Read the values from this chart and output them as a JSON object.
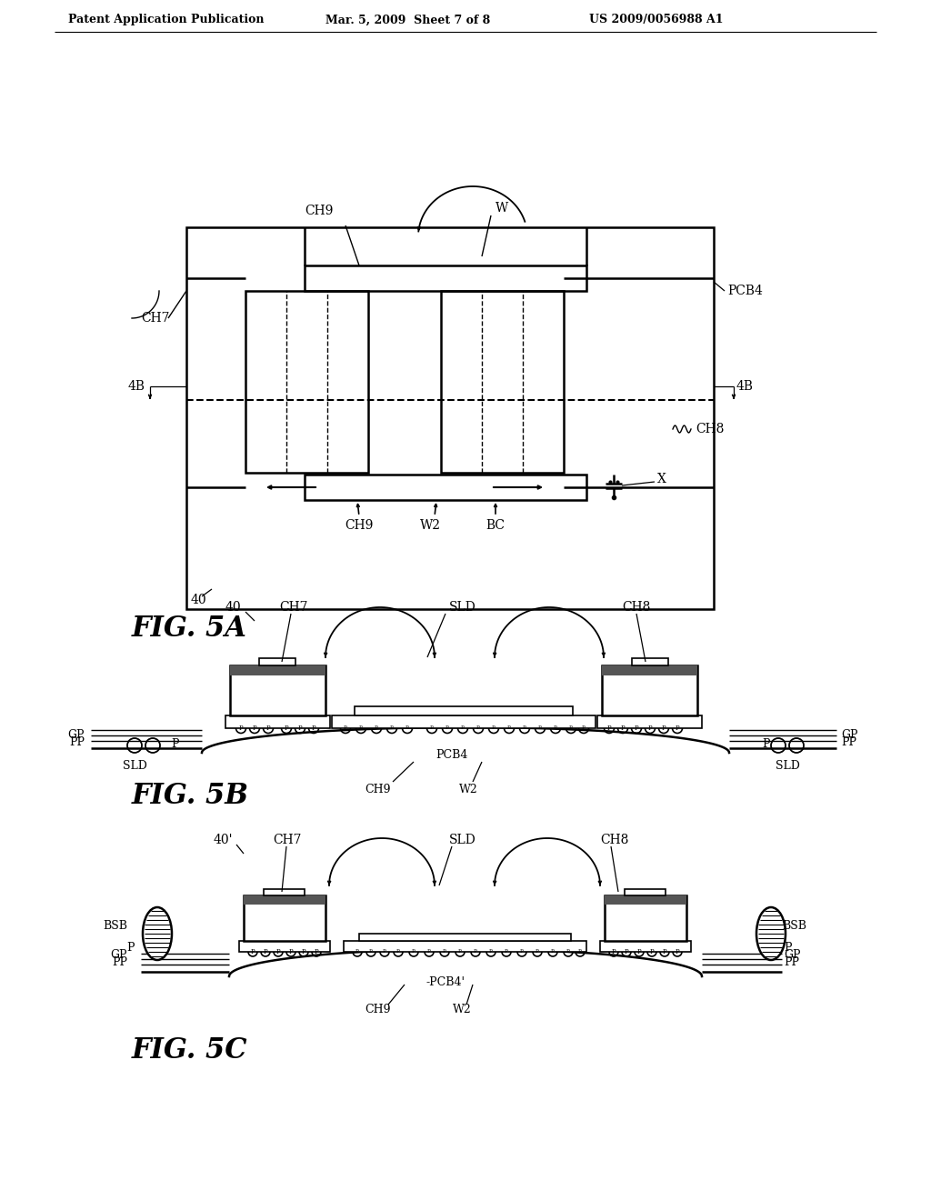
{
  "bg_color": "#ffffff",
  "header_left": "Patent Application Publication",
  "header_mid": "Mar. 5, 2009  Sheet 7 of 8",
  "header_right": "US 2009/0056988 A1",
  "fig5a_label": "FIG. 5A",
  "fig5b_label": "FIG. 5B",
  "fig5c_label": "FIG. 5C"
}
